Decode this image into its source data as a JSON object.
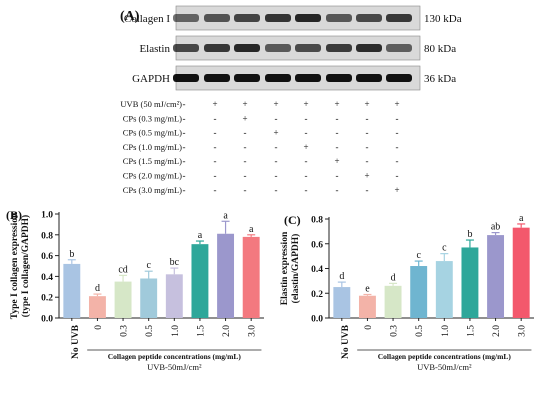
{
  "panel_a": {
    "label": "(A)",
    "blots": [
      {
        "name": "Collagen I",
        "size": "130 kDa"
      },
      {
        "name": "Elastin",
        "size": "80 kDa"
      },
      {
        "name": "GAPDH",
        "size": "36 kDa"
      }
    ],
    "treatment_rows": [
      {
        "label": "UVB (50 mJ/cm²)",
        "signs": [
          "-",
          "+",
          "+",
          "+",
          "+",
          "+",
          "+",
          "+"
        ]
      },
      {
        "label": "CPs (0.3 mg/mL)",
        "signs": [
          "-",
          "-",
          "+",
          "-",
          "-",
          "-",
          "-",
          "-"
        ]
      },
      {
        "label": "CPs (0.5 mg/mL)",
        "signs": [
          "-",
          "-",
          "-",
          "+",
          "-",
          "-",
          "-",
          "-"
        ]
      },
      {
        "label": "CPs (1.0 mg/mL)",
        "signs": [
          "-",
          "-",
          "-",
          "-",
          "+",
          "-",
          "-",
          "-"
        ]
      },
      {
        "label": "CPs (1.5 mg/mL)",
        "signs": [
          "-",
          "-",
          "-",
          "-",
          "-",
          "+",
          "-",
          "-"
        ]
      },
      {
        "label": "CPs (2.0 mg/mL)",
        "signs": [
          "-",
          "-",
          "-",
          "-",
          "-",
          "-",
          "+",
          "-"
        ]
      },
      {
        "label": "CPs (3.0 mg/mL)",
        "signs": [
          "-",
          "-",
          "-",
          "-",
          "-",
          "-",
          "-",
          "+"
        ]
      }
    ]
  },
  "chart_data": [
    {
      "type": "bar",
      "panel_label": "(B)",
      "ylabel_line1": "Type I collagen expression",
      "ylabel_line2": "(type I collagen/GAPDH)",
      "ylim": [
        0,
        1.0
      ],
      "yticks": [
        "0.0",
        "0.2",
        "0.4",
        "0.6",
        "0.8",
        "1.0"
      ],
      "categories": [
        "No UVB",
        "0",
        "0.3",
        "0.5",
        "1.0",
        "1.5",
        "2.0",
        "3.0"
      ],
      "values": [
        0.52,
        0.21,
        0.35,
        0.38,
        0.42,
        0.71,
        0.81,
        0.78
      ],
      "errors": [
        0.04,
        0.02,
        0.06,
        0.07,
        0.06,
        0.03,
        0.12,
        0.02
      ],
      "letters": [
        "b",
        "d",
        "cd",
        "c",
        "bc",
        "a",
        "a",
        "a"
      ],
      "colors": [
        "#a9c4e3",
        "#f3b3a8",
        "#d6e7c7",
        "#a0cadb",
        "#c6c0de",
        "#2ea79a",
        "#9b97cc",
        "#f3797f"
      ],
      "xlabel": "Collagen peptide concentrations (mg/mL)",
      "xlabel2": "UVB-50mJ/cm²"
    },
    {
      "type": "bar",
      "panel_label": "(C)",
      "ylabel_line1": "Elastin expression",
      "ylabel_line2": "(elastin/GAPDH)",
      "ylim": [
        0,
        0.8
      ],
      "yticks": [
        "0.0",
        "0.2",
        "0.4",
        "0.6",
        "0.8"
      ],
      "categories": [
        "No UVB",
        "0",
        "0.3",
        "0.5",
        "1.0",
        "1.5",
        "2.0",
        "3.0"
      ],
      "values": [
        0.25,
        0.18,
        0.26,
        0.42,
        0.46,
        0.57,
        0.67,
        0.73
      ],
      "errors": [
        0.04,
        0.01,
        0.02,
        0.04,
        0.06,
        0.06,
        0.02,
        0.03
      ],
      "letters": [
        "d",
        "e",
        "d",
        "c",
        "c",
        "b",
        "ab",
        "a"
      ],
      "colors": [
        "#a9c4e3",
        "#f3b3a8",
        "#d6e7c7",
        "#6fb5d0",
        "#a6d3e2",
        "#2ea79a",
        "#9b97cc",
        "#f3586c"
      ],
      "xlabel": "Collagen peptide concentrations (mg/mL)",
      "xlabel2": "UVB-50mJ/cm²"
    }
  ]
}
